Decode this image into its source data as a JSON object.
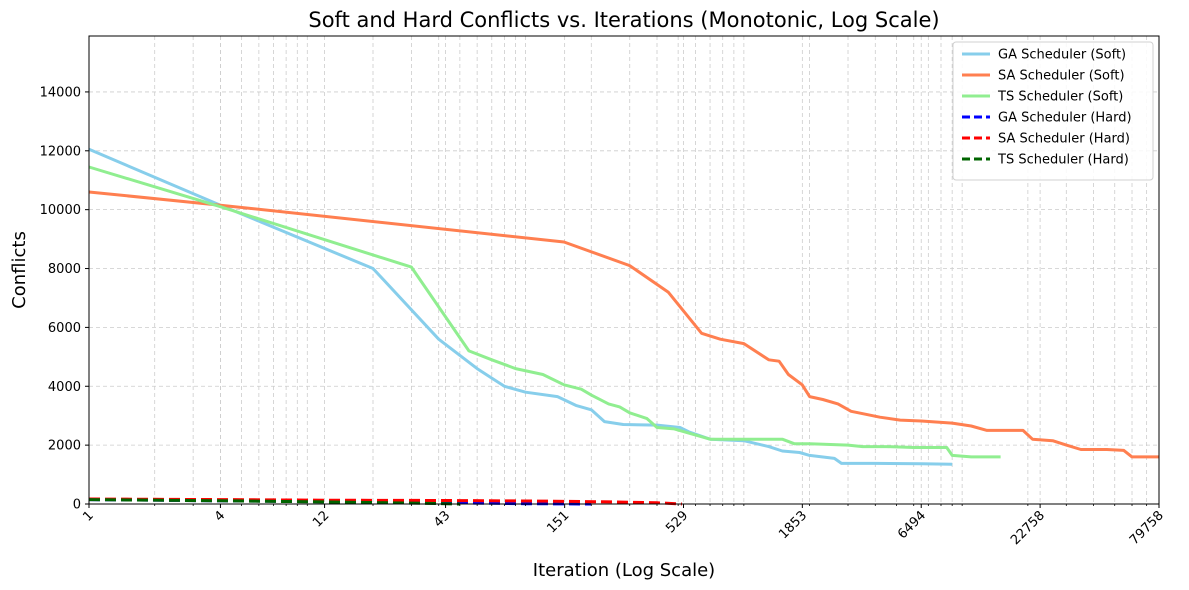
{
  "chart_data": {
    "type": "line",
    "title": "Soft and Hard Conflicts vs. Iterations (Monotonic, Log Scale)",
    "xlabel": "Iteration (Log Scale)",
    "ylabel": "Conflicts",
    "xscale": "log",
    "xlim": [
      1,
      79758
    ],
    "ylim": [
      0,
      15900
    ],
    "grid": true,
    "legend_position": "top-right",
    "x_ticks": [
      1,
      4,
      12,
      43,
      151,
      529,
      1853,
      6494,
      22758,
      79758
    ],
    "y_ticks": [
      0,
      2000,
      4000,
      6000,
      8000,
      10000,
      12000,
      14000
    ],
    "series": [
      {
        "name": "GA Scheduler (Soft)",
        "color": "#87CEEB",
        "style": "solid",
        "points": [
          [
            1,
            12050
          ],
          [
            4,
            10150
          ],
          [
            20,
            8000
          ],
          [
            40,
            5600
          ],
          [
            60,
            4600
          ],
          [
            80,
            4000
          ],
          [
            100,
            3800
          ],
          [
            140,
            3650
          ],
          [
            170,
            3350
          ],
          [
            200,
            3200
          ],
          [
            230,
            2800
          ],
          [
            280,
            2700
          ],
          [
            400,
            2680
          ],
          [
            510,
            2600
          ],
          [
            560,
            2450
          ],
          [
            700,
            2200
          ],
          [
            1000,
            2150
          ],
          [
            1300,
            1950
          ],
          [
            1500,
            1800
          ],
          [
            1800,
            1750
          ],
          [
            2000,
            1650
          ],
          [
            2600,
            1550
          ],
          [
            2800,
            1380
          ],
          [
            4000,
            1380
          ],
          [
            6500,
            1370
          ],
          [
            9000,
            1350
          ]
        ]
      },
      {
        "name": "SA Scheduler (Soft)",
        "color": "#FF7F50",
        "style": "solid",
        "points": [
          [
            1,
            10600
          ],
          [
            4,
            10150
          ],
          [
            150,
            8900
          ],
          [
            300,
            8100
          ],
          [
            450,
            7200
          ],
          [
            640,
            5800
          ],
          [
            780,
            5600
          ],
          [
            1000,
            5450
          ],
          [
            1300,
            4900
          ],
          [
            1450,
            4850
          ],
          [
            1600,
            4400
          ],
          [
            1850,
            4050
          ],
          [
            2000,
            3650
          ],
          [
            2300,
            3550
          ],
          [
            2700,
            3400
          ],
          [
            3100,
            3150
          ],
          [
            3600,
            3050
          ],
          [
            4200,
            2950
          ],
          [
            5200,
            2850
          ],
          [
            6500,
            2820
          ],
          [
            9000,
            2750
          ],
          [
            11000,
            2650
          ],
          [
            13000,
            2500
          ],
          [
            19000,
            2500
          ],
          [
            21000,
            2200
          ],
          [
            26000,
            2150
          ],
          [
            30000,
            2000
          ],
          [
            35000,
            1850
          ],
          [
            46000,
            1850
          ],
          [
            55000,
            1820
          ],
          [
            60000,
            1600
          ],
          [
            79758,
            1600
          ]
        ]
      },
      {
        "name": "TS Scheduler (Soft)",
        "color": "#90EE90",
        "style": "solid",
        "points": [
          [
            1,
            11450
          ],
          [
            4,
            10100
          ],
          [
            30,
            8050
          ],
          [
            55,
            5200
          ],
          [
            70,
            4900
          ],
          [
            90,
            4600
          ],
          [
            120,
            4400
          ],
          [
            150,
            4050
          ],
          [
            180,
            3900
          ],
          [
            200,
            3700
          ],
          [
            240,
            3400
          ],
          [
            270,
            3300
          ],
          [
            300,
            3100
          ],
          [
            360,
            2900
          ],
          [
            400,
            2600
          ],
          [
            480,
            2550
          ],
          [
            700,
            2200
          ],
          [
            1000,
            2200
          ],
          [
            1500,
            2200
          ],
          [
            1700,
            2050
          ],
          [
            2000,
            2050
          ],
          [
            3000,
            2000
          ],
          [
            3500,
            1950
          ],
          [
            4500,
            1950
          ],
          [
            6000,
            1920
          ],
          [
            8500,
            1920
          ],
          [
            9000,
            1650
          ],
          [
            11000,
            1600
          ],
          [
            15000,
            1600
          ]
        ]
      },
      {
        "name": "GA Scheduler (Hard)",
        "color": "#0000FF",
        "style": "dashed",
        "points": [
          [
            1,
            150
          ],
          [
            4,
            110
          ],
          [
            12,
            80
          ],
          [
            43,
            40
          ],
          [
            100,
            10
          ],
          [
            200,
            0
          ]
        ]
      },
      {
        "name": "SA Scheduler (Hard)",
        "color": "#FF0000",
        "style": "dashed",
        "points": [
          [
            1,
            170
          ],
          [
            4,
            150
          ],
          [
            12,
            130
          ],
          [
            43,
            120
          ],
          [
            120,
            100
          ],
          [
            250,
            70
          ],
          [
            400,
            40
          ],
          [
            520,
            0
          ]
        ]
      },
      {
        "name": "TS Scheduler (Hard)",
        "color": "#006400",
        "style": "dashed",
        "points": [
          [
            1,
            150
          ],
          [
            4,
            110
          ],
          [
            12,
            70
          ],
          [
            30,
            30
          ],
          [
            50,
            0
          ]
        ]
      }
    ]
  }
}
